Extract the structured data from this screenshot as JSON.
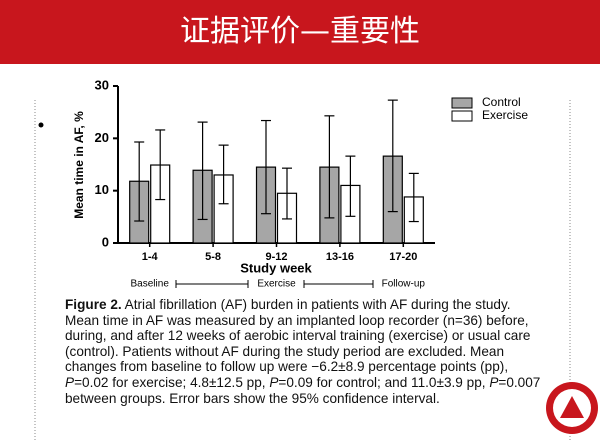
{
  "slide_title": "证据评价—重要性",
  "chart_data": {
    "type": "bar",
    "ylabel": "Mean time in AF, %",
    "xlabel": "Study week",
    "categories": [
      "1-4",
      "5-8",
      "9-12",
      "13-16",
      "17-20"
    ],
    "phases": [
      "Baseline",
      "Exercise",
      "Follow-up"
    ],
    "series": [
      {
        "name": "Control",
        "color": "#a6a6a6",
        "values": [
          11.8,
          13.9,
          14.5,
          14.5,
          16.6
        ],
        "lower": [
          4.2,
          4.5,
          5.6,
          4.8,
          6.0
        ],
        "upper": [
          19.3,
          23.1,
          23.4,
          24.3,
          27.3
        ]
      },
      {
        "name": "Exercise",
        "color": "#ffffff",
        "values": [
          14.9,
          13.0,
          9.5,
          11.0,
          8.8
        ],
        "lower": [
          8.3,
          7.5,
          4.6,
          5.1,
          4.1
        ],
        "upper": [
          21.6,
          18.7,
          14.3,
          16.6,
          13.3
        ]
      }
    ],
    "ylim": [
      0,
      30
    ],
    "yticks": [
      0,
      10,
      20,
      30
    ],
    "legend": "top-right"
  },
  "caption": [
    {
      "text": "Figure 2.",
      "bold": true
    },
    {
      "text": " Atrial fibrillation (AF) burden in patients with AF during the study. Mean time in AF was measured by an implanted loop recorder (n=36) before, during, and after 12 weeks of aerobic interval training (exercise) or usual care (control). Patients without AF during the study period are excluded. Mean changes from baseline to follow up were −6.2±8.9 percentage points (pp), "
    },
    {
      "text": "P",
      "italic": true
    },
    {
      "text": "=0.02 for exercise; 4.8±12.5 pp, "
    },
    {
      "text": "P",
      "italic": true
    },
    {
      "text": "=0.09 for control; and 11.0±3.9 pp, "
    },
    {
      "text": "P",
      "italic": true
    },
    {
      "text": "=0.007 between groups. Error bars show the 95% confidence interval."
    }
  ]
}
